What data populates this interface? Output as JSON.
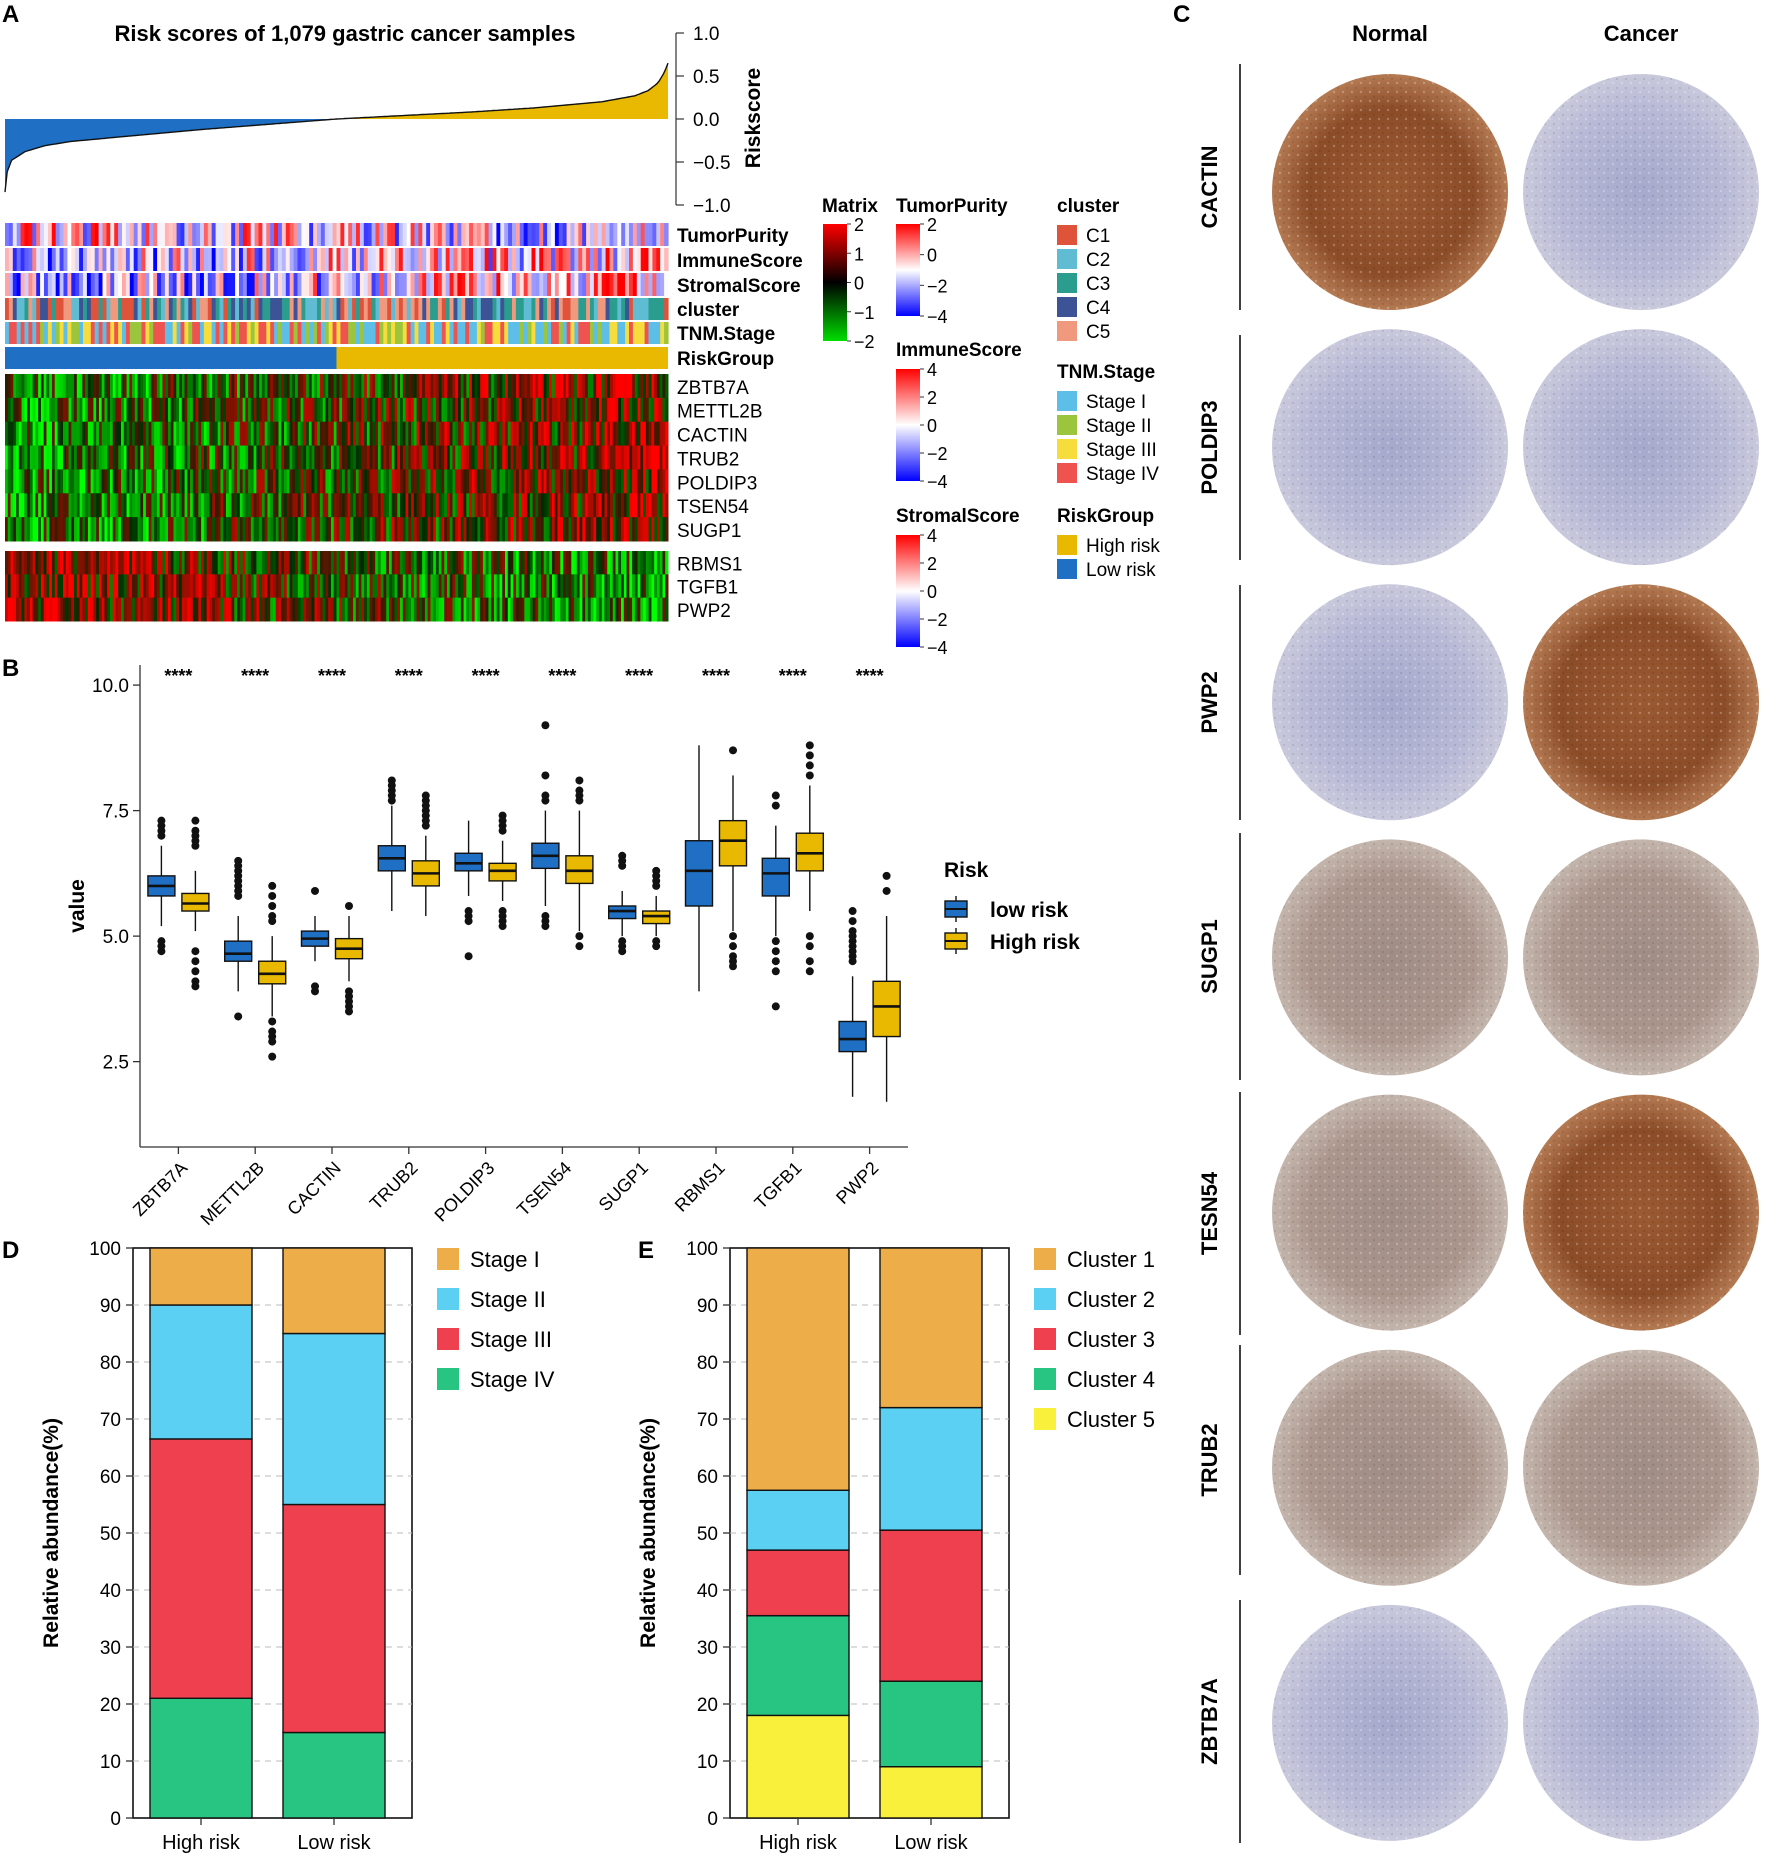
{
  "figure": {
    "panel_labels": {
      "A": "A",
      "B": "B",
      "C": "C",
      "D": "D",
      "E": "E"
    },
    "colors": {
      "low_risk": "#1f6fc5",
      "high_risk": "#e8b900",
      "cluster": [
        "#e0533b",
        "#5fbcd3",
        "#2a9d8f",
        "#3c5396",
        "#f0997e"
      ],
      "stage": [
        "#5dbfe8",
        "#9bc53d",
        "#f7dc3d",
        "#ef5350"
      ],
      "D_stage": [
        "#edae49",
        "#5bd0f2",
        "#ef4050",
        "#28c482"
      ],
      "E_cluster": [
        "#edae49",
        "#5bd0f2",
        "#ef4050",
        "#28c482",
        "#f8f03a"
      ]
    }
  },
  "chart_data": [
    {
      "id": "A-riskscore",
      "type": "area",
      "title": "Risk scores of 1,079 gastric cancer samples",
      "ylabel": "Riskscore",
      "ylim": [
        -1.0,
        1.0
      ],
      "yticks": [
        "1.0",
        "0.5",
        "0.0",
        "−0.5",
        "−1.0"
      ],
      "n_samples": 1079,
      "sorted_score_profile": {
        "x_frac": [
          0,
          0.003,
          0.01,
          0.03,
          0.06,
          0.1,
          0.2,
          0.3,
          0.4,
          0.5,
          0.6,
          0.7,
          0.8,
          0.9,
          0.95,
          0.97,
          0.985,
          0.995,
          1.0
        ],
        "y": [
          -0.85,
          -0.62,
          -0.48,
          -0.38,
          -0.31,
          -0.26,
          -0.19,
          -0.12,
          -0.06,
          0.0,
          0.04,
          0.08,
          0.13,
          0.2,
          0.27,
          0.33,
          0.42,
          0.55,
          0.65
        ]
      }
    },
    {
      "id": "A-heatmap",
      "type": "heatmap",
      "annotation_tracks": [
        "TumorPurity",
        "ImmuneScore",
        "StromalScore",
        "cluster",
        "TNM.Stage",
        "RiskGroup"
      ],
      "genes_up": [
        "ZBTB7A",
        "METTL2B",
        "CACTIN",
        "TRUB2",
        "POLDIP3",
        "TSEN54",
        "SUGP1"
      ],
      "genes_down": [
        "RBMS1",
        "TGFB1",
        "PWP2"
      ],
      "legends": {
        "matrix": {
          "title": "Matrix",
          "ticks": [
            "2",
            "1",
            "0",
            "−1",
            "−2"
          ]
        },
        "tumorpurity": {
          "title": "TumorPurity",
          "ticks": [
            "2",
            "0",
            "−2",
            "−4"
          ]
        },
        "immunescore": {
          "title": "ImmuneScore",
          "ticks": [
            "4",
            "2",
            "0",
            "−2",
            "−4"
          ]
        },
        "stromalscore": {
          "title": "StromalScore",
          "ticks": [
            "4",
            "2",
            "0",
            "−2",
            "−4"
          ]
        },
        "cluster": {
          "title": "cluster",
          "items": [
            "C1",
            "C2",
            "C3",
            "C4",
            "C5"
          ]
        },
        "tnm": {
          "title": "TNM.Stage",
          "items": [
            "Stage I",
            "Stage II",
            "Stage III",
            "Stage IV"
          ]
        },
        "riskgroup": {
          "title": "RiskGroup",
          "items": [
            "High risk",
            "Low risk"
          ]
        }
      }
    },
    {
      "id": "B-boxplot",
      "type": "box",
      "ylabel": "value",
      "yticks": [
        "10.0",
        "7.5",
        "5.0",
        "2.5"
      ],
      "ylim": [
        0.8,
        10.4
      ],
      "significance": "****",
      "legend_title": "Risk",
      "series": [
        "low risk",
        "High risk"
      ],
      "categories": [
        "ZBTB7A",
        "METTL2B",
        "CACTIN",
        "TRUB2",
        "POLDIP3",
        "TSEN54",
        "SUGP1",
        "RBMS1",
        "TGFB1",
        "PWP2"
      ],
      "low_risk": [
        {
          "min": 5.2,
          "q1": 5.8,
          "med": 6.0,
          "q3": 6.2,
          "max": 6.8,
          "out": [
            7.2,
            7.3,
            7.1,
            7.0,
            4.7,
            4.8,
            4.9
          ]
        },
        {
          "min": 3.9,
          "q1": 4.5,
          "med": 4.65,
          "q3": 4.9,
          "max": 5.4,
          "out": [
            6.5,
            6.4,
            6.3,
            6.2,
            6.1,
            6.0,
            5.9,
            5.8,
            3.4
          ]
        },
        {
          "min": 4.5,
          "q1": 4.8,
          "med": 4.95,
          "q3": 5.1,
          "max": 5.4,
          "out": [
            5.9,
            4.0,
            3.9
          ]
        },
        {
          "min": 5.5,
          "q1": 6.3,
          "med": 6.55,
          "q3": 6.8,
          "max": 7.6,
          "out": [
            8.1,
            8.0,
            7.9,
            7.8,
            7.7
          ]
        },
        {
          "min": 5.8,
          "q1": 6.3,
          "med": 6.45,
          "q3": 6.65,
          "max": 7.3,
          "out": [
            5.5,
            5.4,
            5.3,
            4.6
          ]
        },
        {
          "min": 5.6,
          "q1": 6.35,
          "med": 6.6,
          "q3": 6.85,
          "max": 7.5,
          "out": [
            9.2,
            8.2,
            7.8,
            7.7,
            5.4,
            5.3,
            5.2
          ]
        },
        {
          "min": 5.0,
          "q1": 5.35,
          "med": 5.5,
          "q3": 5.6,
          "max": 5.9,
          "out": [
            6.6,
            6.5,
            6.4,
            4.9,
            4.8,
            4.7
          ]
        },
        {
          "min": 3.9,
          "q1": 5.6,
          "med": 6.3,
          "q3": 6.9,
          "max": 8.8,
          "out": []
        },
        {
          "min": 5.0,
          "q1": 5.8,
          "med": 6.25,
          "q3": 6.55,
          "max": 7.2,
          "out": [
            7.8,
            7.6,
            4.9,
            4.7,
            4.5,
            4.3,
            3.6
          ]
        },
        {
          "min": 1.8,
          "q1": 2.7,
          "med": 2.95,
          "q3": 3.3,
          "max": 4.2,
          "out": [
            5.5,
            5.3,
            5.1,
            5.0,
            4.9,
            4.8,
            4.7,
            4.6,
            4.5
          ]
        }
      ],
      "high_risk": [
        {
          "min": 5.1,
          "q1": 5.5,
          "med": 5.65,
          "q3": 5.85,
          "max": 6.3,
          "out": [
            7.3,
            7.1,
            7.0,
            6.9,
            6.8,
            4.7,
            4.5,
            4.3,
            4.1,
            4.0
          ]
        },
        {
          "min": 3.4,
          "q1": 4.05,
          "med": 4.25,
          "q3": 4.5,
          "max": 5.0,
          "out": [
            6.0,
            5.8,
            5.6,
            5.4,
            5.3,
            3.3,
            3.1,
            3.0,
            2.9,
            2.6
          ]
        },
        {
          "min": 4.1,
          "q1": 4.55,
          "med": 4.75,
          "q3": 4.95,
          "max": 5.4,
          "out": [
            5.6,
            3.9,
            3.8,
            3.7,
            3.6,
            3.5
          ]
        },
        {
          "min": 5.4,
          "q1": 6.0,
          "med": 6.25,
          "q3": 6.5,
          "max": 7.0,
          "out": [
            7.8,
            7.7,
            7.6,
            7.5,
            7.4,
            7.3,
            7.2
          ]
        },
        {
          "min": 5.7,
          "q1": 6.1,
          "med": 6.3,
          "q3": 6.45,
          "max": 6.9,
          "out": [
            7.4,
            7.3,
            7.2,
            7.1,
            5.5,
            5.4,
            5.3,
            5.2
          ]
        },
        {
          "min": 5.1,
          "q1": 6.05,
          "med": 6.3,
          "q3": 6.6,
          "max": 7.5,
          "out": [
            8.1,
            7.9,
            7.8,
            7.7,
            5.0,
            4.8
          ]
        },
        {
          "min": 5.0,
          "q1": 5.25,
          "med": 5.4,
          "q3": 5.5,
          "max": 5.8,
          "out": [
            6.3,
            6.2,
            6.1,
            6.0,
            4.9,
            4.8
          ]
        },
        {
          "min": 5.1,
          "q1": 6.4,
          "med": 6.9,
          "q3": 7.3,
          "max": 8.2,
          "out": [
            8.7,
            5.0,
            4.8,
            4.6,
            4.5,
            4.4
          ]
        },
        {
          "min": 5.5,
          "q1": 6.3,
          "med": 6.65,
          "q3": 7.05,
          "max": 8.0,
          "out": [
            8.8,
            8.6,
            8.4,
            8.2,
            5.0,
            4.8,
            4.5,
            4.3
          ]
        },
        {
          "min": 1.7,
          "q1": 3.0,
          "med": 3.6,
          "q3": 4.1,
          "max": 5.4,
          "out": [
            6.2,
            5.9
          ]
        }
      ]
    },
    {
      "id": "D-stacked",
      "type": "bar",
      "stacked": true,
      "ylabel": "Relative abundance(%)",
      "ylim": [
        0,
        100
      ],
      "categories": [
        "High risk",
        "Low risk"
      ],
      "series": [
        {
          "name": "Stage IV",
          "values": [
            21,
            15
          ]
        },
        {
          "name": "Stage III",
          "values": [
            45.5,
            40
          ]
        },
        {
          "name": "Stage II",
          "values": [
            23.5,
            30
          ]
        },
        {
          "name": "Stage I",
          "values": [
            10,
            15
          ]
        }
      ],
      "legend_order": [
        "Stage I",
        "Stage II",
        "Stage III",
        "Stage IV"
      ]
    },
    {
      "id": "E-stacked",
      "type": "bar",
      "stacked": true,
      "ylabel": "Relative abundance(%)",
      "ylim": [
        0,
        100
      ],
      "categories": [
        "High risk",
        "Low risk"
      ],
      "series": [
        {
          "name": "Cluster 5",
          "values": [
            18,
            9
          ]
        },
        {
          "name": "Cluster 4",
          "values": [
            17.5,
            15
          ]
        },
        {
          "name": "Cluster 3",
          "values": [
            11.5,
            26.5
          ]
        },
        {
          "name": "Cluster 2",
          "values": [
            10.5,
            21.5
          ]
        },
        {
          "name": "Cluster 1",
          "values": [
            42.5,
            28
          ]
        }
      ],
      "legend_order": [
        "Cluster 1",
        "Cluster 2",
        "Cluster 3",
        "Cluster 4",
        "Cluster 5"
      ]
    },
    {
      "id": "C-ihc",
      "type": "table",
      "columns": [
        "Normal",
        "Cancer"
      ],
      "rows": [
        "CACTIN",
        "POLDIP3",
        "PWP2",
        "SUGP1",
        "TESN54",
        "TRUB2",
        "ZBTB7A"
      ],
      "stain": [
        {
          "normal": "strong",
          "cancer": "weak"
        },
        {
          "normal": "weak",
          "cancer": "weak"
        },
        {
          "normal": "weak",
          "cancer": "strong"
        },
        {
          "normal": "medium",
          "cancer": "medium"
        },
        {
          "normal": "medium",
          "cancer": "strong"
        },
        {
          "normal": "medium",
          "cancer": "medium"
        },
        {
          "normal": "weak",
          "cancer": "weak"
        }
      ]
    }
  ]
}
